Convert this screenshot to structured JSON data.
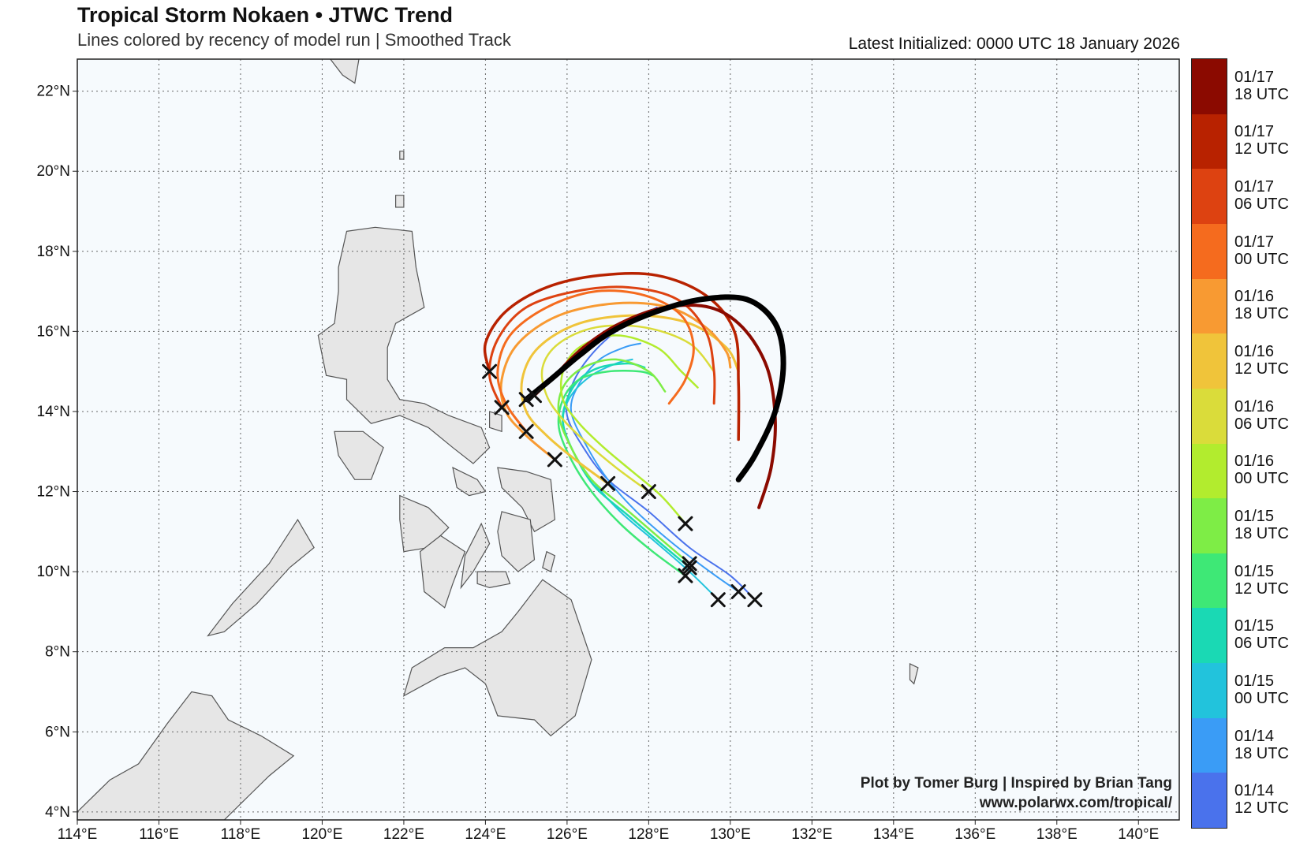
{
  "title": "Tropical Storm Nokaen • JTWC Trend",
  "subtitle": "Lines colored by recency of model run | Smoothed Track",
  "latest_initialized": "Latest Initialized: 0000 UTC 18 January 2026",
  "credit_line1": "Plot by Tomer Burg | Inspired by Brian Tang",
  "credit_line2": "www.polarwx.com/tropical/",
  "map_extent": {
    "lon": [
      114,
      141
    ],
    "lat": [
      3.8,
      22.8
    ]
  },
  "axes": {
    "lon_ticks": [
      "114°E",
      "116°E",
      "118°E",
      "120°E",
      "122°E",
      "124°E",
      "126°E",
      "128°E",
      "130°E",
      "132°E",
      "134°E",
      "136°E",
      "138°E",
      "140°E"
    ],
    "lat_ticks": [
      "4°N",
      "6°N",
      "8°N",
      "10°N",
      "12°N",
      "14°N",
      "16°N",
      "18°N",
      "20°N",
      "22°N"
    ],
    "grid": "dotted"
  },
  "colorbar": {
    "labels": [
      [
        "01/17",
        "18 UTC"
      ],
      [
        "01/17",
        "12 UTC"
      ],
      [
        "01/17",
        "06 UTC"
      ],
      [
        "01/17",
        "00 UTC"
      ],
      [
        "01/16",
        "18 UTC"
      ],
      [
        "01/16",
        "12 UTC"
      ],
      [
        "01/16",
        "06 UTC"
      ],
      [
        "01/16",
        "00 UTC"
      ],
      [
        "01/15",
        "18 UTC"
      ],
      [
        "01/15",
        "12 UTC"
      ],
      [
        "01/15",
        "06 UTC"
      ],
      [
        "01/15",
        "00 UTC"
      ],
      [
        "01/14",
        "18 UTC"
      ],
      [
        "01/14",
        "12 UTC"
      ]
    ],
    "colors": [
      "#8b0a00",
      "#b82200",
      "#dd4211",
      "#f56b1e",
      "#f89a32",
      "#f0c43a",
      "#dadc3a",
      "#b2ec2e",
      "#7eed46",
      "#3ee876",
      "#1ad9b4",
      "#22c3dc",
      "#3a9cf6",
      "#4a72ec"
    ]
  },
  "tracks": [
    {
      "run": "01/14 12 UTC",
      "color": "#4a72ec",
      "width": 2,
      "points": [
        [
          130.6,
          9.3
        ],
        [
          130.0,
          9.9
        ],
        [
          129.0,
          10.6
        ],
        [
          128.0,
          11.5
        ],
        [
          127.0,
          12.3
        ],
        [
          126.4,
          13.1
        ],
        [
          126.0,
          13.9
        ],
        [
          126.1,
          14.6
        ],
        [
          126.5,
          15.3
        ],
        [
          127.2,
          16.0
        ],
        [
          128.2,
          16.6
        ]
      ]
    },
    {
      "run": "01/14 18 UTC",
      "color": "#3a9cf6",
      "width": 2,
      "points": [
        [
          130.2,
          9.5
        ],
        [
          129.5,
          10.0
        ],
        [
          128.6,
          10.7
        ],
        [
          127.7,
          11.5
        ],
        [
          127.0,
          12.3
        ],
        [
          126.5,
          13.1
        ],
        [
          126.1,
          14.0
        ],
        [
          126.3,
          14.7
        ],
        [
          126.8,
          15.3
        ],
        [
          127.4,
          15.6
        ],
        [
          127.8,
          15.7
        ]
      ]
    },
    {
      "run": "01/15 00 UTC",
      "color": "#22c3dc",
      "width": 2,
      "points": [
        [
          129.7,
          9.3
        ],
        [
          129.0,
          10.0
        ],
        [
          128.1,
          10.8
        ],
        [
          127.3,
          11.5
        ],
        [
          126.6,
          12.3
        ],
        [
          126.1,
          13.1
        ],
        [
          125.9,
          13.8
        ],
        [
          126.1,
          14.4
        ],
        [
          126.6,
          14.9
        ],
        [
          127.2,
          15.2
        ],
        [
          127.6,
          15.3
        ]
      ]
    },
    {
      "run": "01/15 06 UTC",
      "color": "#1ad9b4",
      "width": 2.5,
      "points": [
        [
          129.0,
          10.1
        ],
        [
          128.3,
          10.7
        ],
        [
          127.5,
          11.4
        ],
        [
          126.7,
          12.1
        ],
        [
          126.2,
          12.9
        ],
        [
          125.9,
          13.7
        ],
        [
          126.0,
          14.3
        ],
        [
          126.3,
          14.8
        ],
        [
          126.8,
          15.1
        ],
        [
          127.5,
          15.2
        ],
        [
          127.9,
          15.1
        ]
      ]
    },
    {
      "run": "01/15 12 UTC",
      "color": "#3ee876",
      "width": 2.5,
      "points": [
        [
          128.9,
          9.9
        ],
        [
          128.1,
          10.5
        ],
        [
          127.3,
          11.2
        ],
        [
          126.6,
          12.0
        ],
        [
          126.1,
          12.8
        ],
        [
          125.8,
          13.6
        ],
        [
          125.9,
          14.3
        ],
        [
          126.3,
          14.8
        ],
        [
          127.0,
          15.0
        ],
        [
          127.8,
          15.0
        ],
        [
          128.1,
          14.9
        ]
      ]
    },
    {
      "run": "01/15 18 UTC",
      "color": "#7eed46",
      "width": 2.5,
      "points": [
        [
          129.0,
          10.2
        ],
        [
          128.2,
          10.9
        ],
        [
          127.4,
          11.6
        ],
        [
          126.6,
          12.3
        ],
        [
          126.1,
          13.1
        ],
        [
          125.8,
          13.9
        ],
        [
          125.9,
          14.6
        ],
        [
          126.4,
          15.1
        ],
        [
          127.2,
          15.3
        ],
        [
          128.0,
          15.0
        ],
        [
          128.4,
          14.5
        ]
      ]
    },
    {
      "run": "01/16 00 UTC",
      "color": "#b2ec2e",
      "width": 2.5,
      "points": [
        [
          128.9,
          11.2
        ],
        [
          128.3,
          11.9
        ],
        [
          127.6,
          12.5
        ],
        [
          126.9,
          13.1
        ],
        [
          126.3,
          13.7
        ],
        [
          125.9,
          14.3
        ],
        [
          125.9,
          15.0
        ],
        [
          126.3,
          15.6
        ],
        [
          127.2,
          15.9
        ],
        [
          128.2,
          15.6
        ],
        [
          128.8,
          15.0
        ],
        [
          129.2,
          14.6
        ]
      ]
    },
    {
      "run": "01/16 06 UTC",
      "color": "#dadc3a",
      "width": 2.5,
      "points": [
        [
          128.0,
          12.0
        ],
        [
          127.2,
          12.6
        ],
        [
          126.5,
          13.2
        ],
        [
          125.9,
          13.8
        ],
        [
          125.5,
          14.4
        ],
        [
          125.4,
          15.1
        ],
        [
          125.8,
          15.7
        ],
        [
          126.7,
          16.1
        ],
        [
          127.9,
          16.1
        ],
        [
          129.0,
          15.7
        ],
        [
          129.6,
          15.0
        ]
      ]
    },
    {
      "run": "01/16 12 UTC",
      "color": "#f0c43a",
      "width": 3,
      "points": [
        [
          127.0,
          12.2
        ],
        [
          126.2,
          12.8
        ],
        [
          125.5,
          13.4
        ],
        [
          125.0,
          14.0
        ],
        [
          124.9,
          14.8
        ],
        [
          125.3,
          15.6
        ],
        [
          126.3,
          16.2
        ],
        [
          127.7,
          16.4
        ],
        [
          129.0,
          16.2
        ],
        [
          129.9,
          15.6
        ],
        [
          130.2,
          15.0
        ]
      ]
    },
    {
      "run": "01/16 18 UTC",
      "color": "#f89a32",
      "width": 3,
      "points": [
        [
          125.7,
          12.8
        ],
        [
          125.0,
          13.4
        ],
        [
          124.5,
          14.0
        ],
        [
          124.4,
          14.8
        ],
        [
          124.8,
          15.7
        ],
        [
          125.8,
          16.4
        ],
        [
          127.2,
          16.7
        ],
        [
          128.5,
          16.6
        ],
        [
          129.4,
          16.1
        ],
        [
          129.9,
          15.5
        ],
        [
          130.0,
          15.1
        ]
      ]
    },
    {
      "run": "01/17 00 UTC",
      "color": "#f56b1e",
      "width": 3,
      "points": [
        [
          125.0,
          13.5
        ],
        [
          124.5,
          14.2
        ],
        [
          124.3,
          15.0
        ],
        [
          124.6,
          15.9
        ],
        [
          125.5,
          16.6
        ],
        [
          126.7,
          17.0
        ],
        [
          127.9,
          16.9
        ],
        [
          128.8,
          16.4
        ],
        [
          129.1,
          15.6
        ],
        [
          128.9,
          14.8
        ],
        [
          128.5,
          14.2
        ]
      ]
    },
    {
      "run": "01/17 06 UTC",
      "color": "#dd4211",
      "width": 3,
      "points": [
        [
          124.4,
          14.1
        ],
        [
          124.1,
          14.9
        ],
        [
          124.3,
          15.8
        ],
        [
          125.0,
          16.6
        ],
        [
          126.2,
          17.0
        ],
        [
          127.5,
          17.1
        ],
        [
          128.7,
          16.8
        ],
        [
          129.4,
          16.0
        ],
        [
          129.6,
          15.0
        ],
        [
          129.6,
          14.2
        ]
      ]
    },
    {
      "run": "01/17 12 UTC",
      "color": "#b82200",
      "width": 3.5,
      "points": [
        [
          124.1,
          15.0
        ],
        [
          124.0,
          15.7
        ],
        [
          124.5,
          16.5
        ],
        [
          125.5,
          17.1
        ],
        [
          126.8,
          17.4
        ],
        [
          128.2,
          17.4
        ],
        [
          129.4,
          16.9
        ],
        [
          130.1,
          16.0
        ],
        [
          130.2,
          14.7
        ],
        [
          130.2,
          13.3
        ]
      ]
    },
    {
      "run": "01/17 18 UTC",
      "color": "#8b0a00",
      "width": 4,
      "points": [
        [
          125.2,
          14.4
        ],
        [
          125.7,
          14.9
        ],
        [
          126.4,
          15.6
        ],
        [
          127.3,
          16.2
        ],
        [
          128.4,
          16.6
        ],
        [
          129.5,
          16.6
        ],
        [
          130.3,
          16.1
        ],
        [
          130.9,
          15.1
        ],
        [
          131.1,
          13.8
        ],
        [
          131.0,
          12.6
        ],
        [
          130.7,
          11.6
        ]
      ]
    },
    {
      "run": "01/18 00 UTC",
      "color": "#000000",
      "width": 7,
      "points": [
        [
          125.0,
          14.3
        ],
        [
          125.6,
          14.8
        ],
        [
          126.3,
          15.4
        ],
        [
          127.1,
          16.0
        ],
        [
          128.2,
          16.5
        ],
        [
          129.3,
          16.8
        ],
        [
          130.4,
          16.8
        ],
        [
          131.1,
          16.2
        ],
        [
          131.3,
          15.2
        ],
        [
          131.1,
          14.0
        ],
        [
          130.6,
          12.9
        ],
        [
          130.2,
          12.3
        ]
      ]
    }
  ],
  "initial_positions": [
    [
      130.6,
      9.3
    ],
    [
      130.2,
      9.5
    ],
    [
      129.7,
      9.3
    ],
    [
      129.0,
      10.1
    ],
    [
      128.9,
      9.9
    ],
    [
      129.0,
      10.2
    ],
    [
      128.9,
      11.2
    ],
    [
      128.0,
      12.0
    ],
    [
      127.0,
      12.2
    ],
    [
      125.7,
      12.8
    ],
    [
      125.0,
      13.5
    ],
    [
      124.4,
      14.1
    ],
    [
      124.1,
      15.0
    ],
    [
      125.2,
      14.4
    ],
    [
      125.0,
      14.3
    ]
  ]
}
